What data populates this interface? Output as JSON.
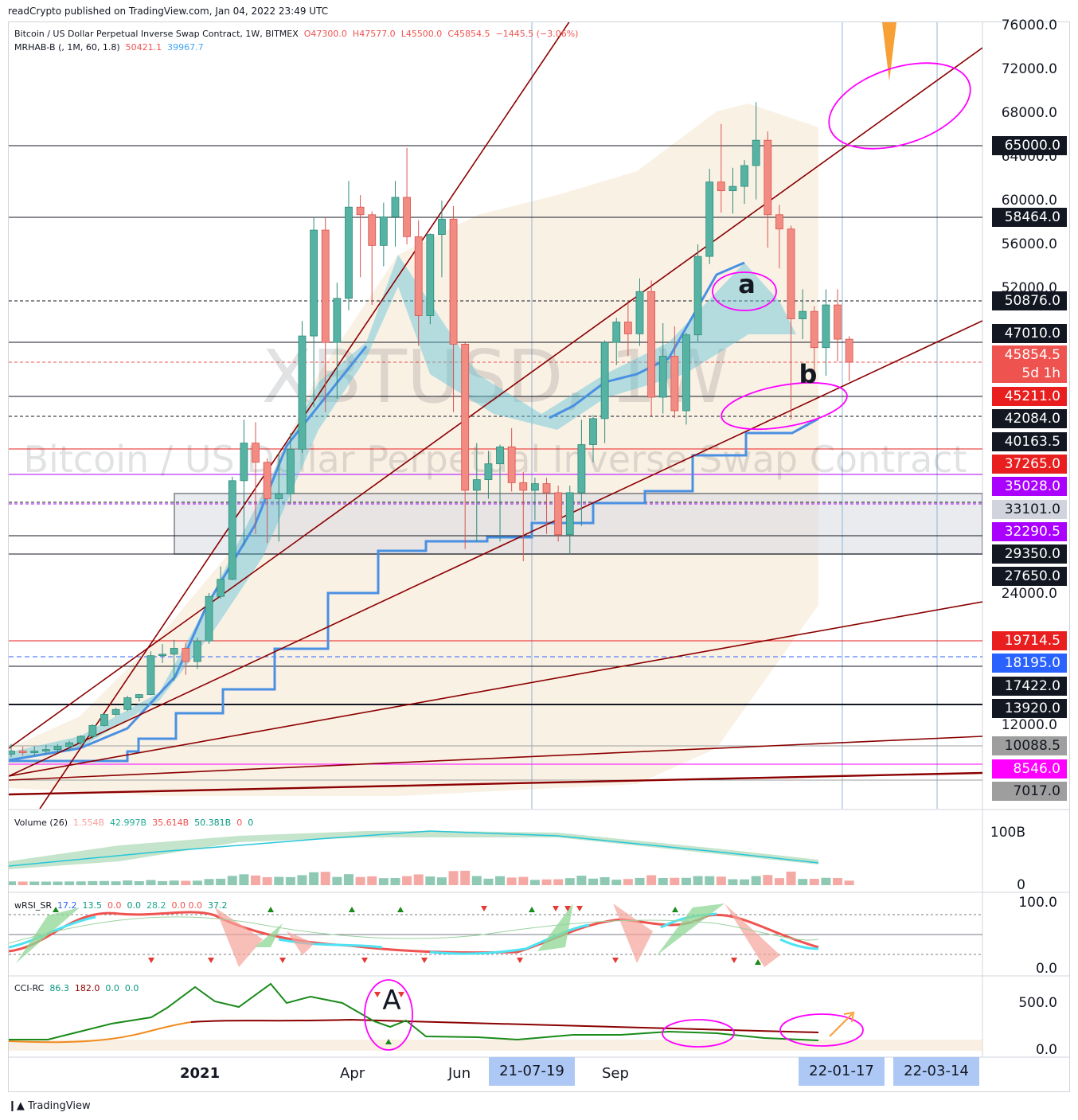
{
  "published": "readCrypto published on TradingView.com, Jan 04, 2022 23:49 UTC",
  "footer": "TradingView",
  "legend": {
    "symbol": "Bitcoin / US Dollar Perpetual Inverse Swap Contract, 1W, BITMEX",
    "o": "O47300.0",
    "h": "H47577.0",
    "l": "L45500.0",
    "c": "C45854.5",
    "change": "−1445.5 (−3.06%)",
    "indicator": "MRHAB-B (, 1M, 60, 1.8)",
    "ind_v1": "50421.1",
    "ind_v2": "39967.7"
  },
  "watermark": {
    "ticker": "XBTUSD, 1W",
    "name": "Bitcoin / US Dollar Perpetual Inverse Swap Contract"
  },
  "annotations": {
    "a": "a",
    "b": "b",
    "A": "A"
  },
  "volume_pane": {
    "label": "Volume (26)",
    "v1": "1.554B",
    "v2": "42.997B",
    "v3": "35.614B",
    "v4": "50.381B",
    "v5": "0",
    "v6": "0",
    "ticks": [
      "100B",
      "0"
    ]
  },
  "rsi_pane": {
    "label": "wRSI_SR",
    "v1": "17.2",
    "v2": "13.5",
    "v3": "0.0",
    "v4": "0.0",
    "v5": "28.2",
    "v6": "0.0",
    "v7": "0.0",
    "v8": "37.2",
    "ticks": [
      "100.0",
      "0.0"
    ]
  },
  "cci_pane": {
    "label": "CCI-RC",
    "v1": "86.3",
    "v2": "182.0",
    "v3": "0.0",
    "v4": "0.0",
    "ticks": [
      "500.0",
      "0.0"
    ]
  },
  "price_ticks": [
    "76000.0",
    "72000.0",
    "68000.0",
    "64000.0",
    "60000.0",
    "56000.0",
    "52000.0",
    "24000.0",
    "12000.0"
  ],
  "price_badges": [
    {
      "text": "65000.0",
      "bg": "#131722",
      "fg": "#ffffff"
    },
    {
      "text": "58464.0",
      "bg": "#131722",
      "fg": "#ffffff"
    },
    {
      "text": "50876.0",
      "bg": "#131722",
      "fg": "#ffffff"
    },
    {
      "text": "47010.0",
      "bg": "#131722",
      "fg": "#ffffff"
    },
    {
      "text": "45854.5",
      "bg": "#ef5350",
      "fg": "#ffffff"
    },
    {
      "text": "5d 1h",
      "bg": "#ef5350",
      "fg": "#ffffff"
    },
    {
      "text": "45211.0",
      "bg": "#e91e1e",
      "fg": "#ffffff"
    },
    {
      "text": "42084.0",
      "bg": "#131722",
      "fg": "#ffffff"
    },
    {
      "text": "40163.5",
      "bg": "#131722",
      "fg": "#ffffff"
    },
    {
      "text": "37265.0",
      "bg": "#e91e1e",
      "fg": "#ffffff"
    },
    {
      "text": "35028.0",
      "bg": "#aa00ff",
      "fg": "#ffffff"
    },
    {
      "text": "33101.0",
      "bg": "#d1d4dc",
      "fg": "#131722"
    },
    {
      "text": "32290.5",
      "bg": "#aa00ff",
      "fg": "#ffffff"
    },
    {
      "text": "29350.0",
      "bg": "#131722",
      "fg": "#ffffff"
    },
    {
      "text": "27650.0",
      "bg": "#131722",
      "fg": "#ffffff"
    },
    {
      "text": "19714.5",
      "bg": "#e91e1e",
      "fg": "#ffffff"
    },
    {
      "text": "18195.0",
      "bg": "#2962ff",
      "fg": "#ffffff"
    },
    {
      "text": "17422.0",
      "bg": "#131722",
      "fg": "#ffffff"
    },
    {
      "text": "13920.0",
      "bg": "#131722",
      "fg": "#ffffff"
    },
    {
      "text": "10088.5",
      "bg": "#9e9e9e",
      "fg": "#131722"
    },
    {
      "text": "8546.0",
      "bg": "#ff00ff",
      "fg": "#ffffff"
    },
    {
      "text": "7017.0",
      "bg": "#9e9e9e",
      "fg": "#131722"
    }
  ],
  "x_labels": [
    "2021",
    "Apr",
    "Jun",
    "Sep"
  ],
  "x_badges": [
    "21-07-19",
    "22-01-17",
    "22-03-14"
  ],
  "chart_data": {
    "type": "candlestick",
    "timeframe": "1W",
    "candles": [
      {
        "o": 9500,
        "h": 10200,
        "l": 9300,
        "c": 9700
      },
      {
        "o": 9700,
        "h": 10000,
        "l": 9400,
        "c": 9600
      },
      {
        "o": 9600,
        "h": 10000,
        "l": 9400,
        "c": 9700
      },
      {
        "o": 9700,
        "h": 10100,
        "l": 9500,
        "c": 9800
      },
      {
        "o": 9800,
        "h": 10200,
        "l": 9600,
        "c": 10000
      },
      {
        "o": 10000,
        "h": 10500,
        "l": 9700,
        "c": 10300
      },
      {
        "o": 10300,
        "h": 11000,
        "l": 10100,
        "c": 10900
      },
      {
        "o": 10900,
        "h": 12000,
        "l": 10700,
        "c": 11900
      },
      {
        "o": 11900,
        "h": 13300,
        "l": 11800,
        "c": 13200
      },
      {
        "o": 13200,
        "h": 14000,
        "l": 13000,
        "c": 13800
      },
      {
        "o": 13800,
        "h": 15900,
        "l": 13600,
        "c": 15600
      },
      {
        "o": 15600,
        "h": 16200,
        "l": 15000,
        "c": 16100
      },
      {
        "o": 16100,
        "h": 19000,
        "l": 16000,
        "c": 18700
      },
      {
        "o": 18700,
        "h": 19500,
        "l": 18200,
        "c": 18800
      },
      {
        "o": 18800,
        "h": 19800,
        "l": 17600,
        "c": 19200
      },
      {
        "o": 19200,
        "h": 19600,
        "l": 17800,
        "c": 18300
      },
      {
        "o": 18300,
        "h": 20000,
        "l": 18000,
        "c": 19700
      },
      {
        "o": 19700,
        "h": 24000,
        "l": 19500,
        "c": 23700
      },
      {
        "o": 23700,
        "h": 28400,
        "l": 23500,
        "c": 27000
      },
      {
        "o": 27000,
        "h": 36000,
        "l": 26800,
        "c": 35600
      },
      {
        "o": 35600,
        "h": 42000,
        "l": 30400,
        "c": 40000
      },
      {
        "o": 40000,
        "h": 41800,
        "l": 32000,
        "c": 37500
      },
      {
        "o": 37500,
        "h": 38000,
        "l": 30800,
        "c": 34000
      },
      {
        "o": 34000,
        "h": 38700,
        "l": 31000,
        "c": 34400
      },
      {
        "o": 34400,
        "h": 40900,
        "l": 33500,
        "c": 39200
      },
      {
        "o": 39200,
        "h": 49000,
        "l": 38700,
        "c": 47600
      },
      {
        "o": 47600,
        "h": 58400,
        "l": 43700,
        "c": 57300
      },
      {
        "o": 57300,
        "h": 58400,
        "l": 43000,
        "c": 47000
      },
      {
        "o": 47000,
        "h": 52500,
        "l": 44900,
        "c": 51100
      },
      {
        "o": 51100,
        "h": 61800,
        "l": 50000,
        "c": 59400
      },
      {
        "o": 59400,
        "h": 60500,
        "l": 53000,
        "c": 58700
      },
      {
        "o": 58700,
        "h": 59000,
        "l": 50500,
        "c": 55900
      },
      {
        "o": 55900,
        "h": 59800,
        "l": 54000,
        "c": 58500
      },
      {
        "o": 58500,
        "h": 61800,
        "l": 55800,
        "c": 60300
      },
      {
        "o": 60300,
        "h": 64800,
        "l": 56000,
        "c": 56700
      },
      {
        "o": 56700,
        "h": 58200,
        "l": 46800,
        "c": 49500
      },
      {
        "o": 49500,
        "h": 57000,
        "l": 48700,
        "c": 56900
      },
      {
        "o": 56900,
        "h": 60000,
        "l": 53000,
        "c": 58300
      },
      {
        "o": 58300,
        "h": 59500,
        "l": 43000,
        "c": 46900
      },
      {
        "o": 46900,
        "h": 47000,
        "l": 30000,
        "c": 34700
      },
      {
        "o": 34700,
        "h": 40000,
        "l": 31000,
        "c": 35700
      },
      {
        "o": 35700,
        "h": 39000,
        "l": 34000,
        "c": 37300
      },
      {
        "o": 37300,
        "h": 39800,
        "l": 31000,
        "c": 39500
      },
      {
        "o": 39500,
        "h": 41300,
        "l": 34600,
        "c": 35400
      },
      {
        "o": 35400,
        "h": 36500,
        "l": 28800,
        "c": 34700
      },
      {
        "o": 34700,
        "h": 35900,
        "l": 32700,
        "c": 35300
      },
      {
        "o": 35300,
        "h": 35900,
        "l": 32000,
        "c": 34500
      },
      {
        "o": 34500,
        "h": 35100,
        "l": 31000,
        "c": 31900
      },
      {
        "o": 31900,
        "h": 35100,
        "l": 29300,
        "c": 34500
      },
      {
        "o": 34500,
        "h": 42000,
        "l": 32500,
        "c": 39800
      },
      {
        "o": 39800,
        "h": 42600,
        "l": 37500,
        "c": 42100
      },
      {
        "o": 42100,
        "h": 47200,
        "l": 40000,
        "c": 47000
      },
      {
        "o": 47000,
        "h": 49300,
        "l": 45800,
        "c": 48900
      },
      {
        "o": 48900,
        "h": 50700,
        "l": 46200,
        "c": 47800
      },
      {
        "o": 47800,
        "h": 52900,
        "l": 46800,
        "c": 51700
      },
      {
        "o": 51700,
        "h": 52700,
        "l": 42500,
        "c": 45100
      },
      {
        "o": 45100,
        "h": 48800,
        "l": 42800,
        "c": 46200
      },
      {
        "o": 46200,
        "h": 48500,
        "l": 42200,
        "c": 43200
      },
      {
        "o": 43200,
        "h": 47900,
        "l": 41600,
        "c": 47700
      },
      {
        "o": 47700,
        "h": 56000,
        "l": 47100,
        "c": 54900
      },
      {
        "o": 54900,
        "h": 62900,
        "l": 54200,
        "c": 61700
      },
      {
        "o": 61700,
        "h": 67000,
        "l": 58900,
        "c": 60900
      },
      {
        "o": 60900,
        "h": 63000,
        "l": 58800,
        "c": 61300
      },
      {
        "o": 61300,
        "h": 63700,
        "l": 59700,
        "c": 63200
      },
      {
        "o": 63200,
        "h": 69000,
        "l": 60100,
        "c": 65500
      },
      {
        "o": 65500,
        "h": 66300,
        "l": 55700,
        "c": 58700
      },
      {
        "o": 58700,
        "h": 59600,
        "l": 53800,
        "c": 57400
      },
      {
        "o": 57400,
        "h": 57700,
        "l": 42000,
        "c": 49200
      },
      {
        "o": 49200,
        "h": 51900,
        "l": 47300,
        "c": 49900
      },
      {
        "o": 49900,
        "h": 50400,
        "l": 45600,
        "c": 46700
      },
      {
        "o": 46700,
        "h": 51900,
        "l": 45600,
        "c": 50500
      },
      {
        "o": 50500,
        "h": 51900,
        "l": 45900,
        "c": 47300
      },
      {
        "o": 47300,
        "h": 47577,
        "l": 45500,
        "c": 45854.5
      }
    ]
  }
}
